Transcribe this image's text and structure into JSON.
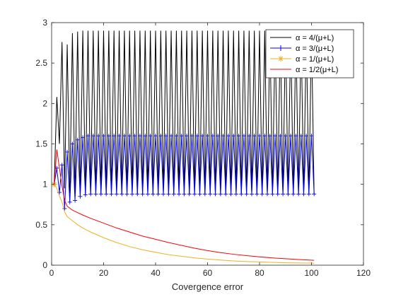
{
  "chart_data": {
    "type": "line",
    "title": "",
    "xlabel": "Covergence error",
    "ylabel": "",
    "xlim": [
      0,
      120
    ],
    "ylim": [
      0,
      3
    ],
    "xticks": [
      0,
      20,
      40,
      60,
      80,
      100,
      120
    ],
    "yticks": [
      0,
      0.5,
      1,
      1.5,
      2,
      2.5,
      3
    ],
    "grid": false,
    "legend_position": "top-right",
    "series": [
      {
        "name": "α = 4/(μ+L)",
        "color": "#000000",
        "marker": "none",
        "x": [
          1,
          2,
          3,
          4,
          5,
          6,
          7,
          8,
          9,
          10,
          11,
          12,
          13,
          14,
          15,
          16,
          17,
          18,
          19,
          20,
          21,
          22,
          23,
          24,
          25,
          26,
          27,
          28,
          29,
          30,
          31,
          32,
          33,
          34,
          35,
          36,
          37,
          38,
          39,
          40,
          41,
          42,
          43,
          44,
          45,
          46,
          47,
          48,
          49,
          50,
          51,
          52,
          53,
          54,
          55,
          56,
          57,
          58,
          59,
          60,
          61,
          62,
          63,
          64,
          65,
          66,
          67,
          68,
          69,
          70,
          71,
          72,
          73,
          74,
          75,
          76,
          77,
          78,
          79,
          80,
          81,
          82,
          83,
          84,
          85,
          86,
          87,
          88,
          89,
          90,
          91,
          92,
          93,
          94,
          95,
          96,
          97,
          98,
          99,
          100,
          101
        ],
        "y": [
          1,
          2.08,
          1.5,
          2.76,
          0.95,
          2.73,
          0.89,
          2.87,
          0.88,
          2.89,
          0.88,
          2.9,
          0.88,
          2.9,
          0.88,
          2.9,
          0.88,
          2.9,
          0.88,
          2.9,
          0.88,
          2.9,
          0.88,
          2.9,
          0.88,
          2.9,
          0.88,
          2.9,
          0.88,
          2.9,
          0.88,
          2.9,
          0.88,
          2.9,
          0.88,
          2.9,
          0.88,
          2.9,
          0.88,
          2.9,
          0.88,
          2.9,
          0.88,
          2.9,
          0.88,
          2.9,
          0.88,
          2.9,
          0.88,
          2.9,
          0.88,
          2.9,
          0.88,
          2.9,
          0.88,
          2.9,
          0.88,
          2.9,
          0.88,
          2.9,
          0.88,
          2.9,
          0.88,
          2.9,
          0.88,
          2.9,
          0.88,
          2.9,
          0.88,
          2.9,
          0.88,
          2.9,
          0.88,
          2.9,
          0.88,
          2.9,
          0.88,
          2.9,
          0.88,
          2.9,
          0.88,
          2.9,
          0.88,
          2.9,
          0.88,
          2.9,
          0.88,
          2.9,
          0.88,
          2.9,
          0.88,
          2.9,
          0.88,
          2.9,
          0.88,
          2.9,
          0.88,
          2.9,
          0.88,
          2.9,
          0.88
        ]
      },
      {
        "name": "α = 3/(μ+L)",
        "color": "#0000ff",
        "marker": "plus",
        "x": [
          1,
          2,
          3,
          4,
          5,
          6,
          7,
          8,
          9,
          10,
          11,
          12,
          13,
          14,
          15,
          16,
          17,
          18,
          19,
          20,
          21,
          22,
          23,
          24,
          25,
          26,
          27,
          28,
          29,
          30,
          31,
          32,
          33,
          34,
          35,
          36,
          37,
          38,
          39,
          40,
          41,
          42,
          43,
          44,
          45,
          46,
          47,
          48,
          49,
          50,
          51,
          52,
          53,
          54,
          55,
          56,
          57,
          58,
          59,
          60,
          61,
          62,
          63,
          64,
          65,
          66,
          67,
          68,
          69,
          70,
          71,
          72,
          73,
          74,
          75,
          76,
          77,
          78,
          79,
          80,
          81,
          82,
          83,
          84,
          85,
          86,
          87,
          88,
          89,
          90,
          91,
          92,
          93,
          94,
          95,
          96,
          97,
          98,
          99,
          100,
          101
        ],
        "y": [
          1,
          1.2,
          0.9,
          1.24,
          0.7,
          1.4,
          0.78,
          1.5,
          0.8,
          1.55,
          0.85,
          1.58,
          0.87,
          1.6,
          0.88,
          1.6,
          0.88,
          1.6,
          0.88,
          1.6,
          0.88,
          1.6,
          0.88,
          1.6,
          0.88,
          1.6,
          0.88,
          1.6,
          0.88,
          1.6,
          0.88,
          1.6,
          0.88,
          1.6,
          0.88,
          1.6,
          0.88,
          1.6,
          0.88,
          1.6,
          0.88,
          1.6,
          0.88,
          1.6,
          0.88,
          1.6,
          0.88,
          1.6,
          0.88,
          1.6,
          0.88,
          1.6,
          0.88,
          1.6,
          0.88,
          1.6,
          0.88,
          1.6,
          0.88,
          1.6,
          0.88,
          1.6,
          0.88,
          1.6,
          0.88,
          1.6,
          0.88,
          1.6,
          0.88,
          1.6,
          0.88,
          1.6,
          0.88,
          1.6,
          0.88,
          1.6,
          0.88,
          1.6,
          0.88,
          1.6,
          0.88,
          1.6,
          0.88,
          1.6,
          0.88,
          1.6,
          0.88,
          1.6,
          0.88,
          1.6,
          0.88,
          1.6,
          0.88,
          1.6,
          0.88,
          1.6,
          0.88,
          1.6,
          0.88,
          1.6,
          0.88
        ]
      },
      {
        "name": "α = 1/(μ+L)",
        "color": "#edb120",
        "marker": "star-first",
        "x": [
          1,
          2,
          3,
          4,
          5,
          6,
          8,
          10,
          12,
          15,
          20,
          25,
          30,
          35,
          40,
          45,
          50,
          55,
          60,
          65,
          70,
          75,
          80,
          85,
          90,
          95,
          101
        ],
        "y": [
          1,
          0.95,
          0.86,
          0.78,
          0.66,
          0.6,
          0.55,
          0.5,
          0.46,
          0.41,
          0.34,
          0.28,
          0.23,
          0.19,
          0.16,
          0.13,
          0.11,
          0.09,
          0.075,
          0.063,
          0.053,
          0.045,
          0.04,
          0.035,
          0.03,
          0.027,
          0.025
        ]
      },
      {
        "name": "α = 1/2(μ+L)",
        "color": "#ff0000",
        "marker": "none",
        "x": [
          1,
          2,
          3,
          4,
          5,
          6,
          8,
          10,
          12,
          15,
          20,
          25,
          30,
          35,
          40,
          45,
          50,
          55,
          60,
          65,
          70,
          75,
          80,
          85,
          90,
          95,
          101
        ],
        "y": [
          1,
          1.43,
          1.2,
          0.98,
          0.8,
          0.73,
          0.68,
          0.65,
          0.62,
          0.58,
          0.52,
          0.46,
          0.41,
          0.36,
          0.32,
          0.28,
          0.245,
          0.21,
          0.18,
          0.155,
          0.135,
          0.118,
          0.103,
          0.09,
          0.08,
          0.07,
          0.06
        ]
      }
    ]
  }
}
